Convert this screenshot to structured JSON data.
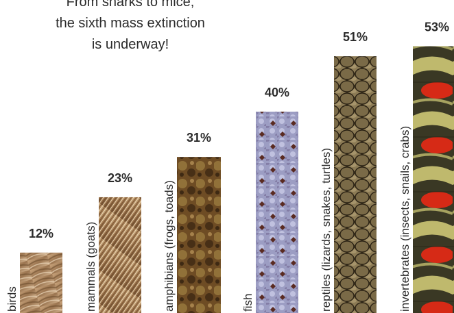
{
  "title_lines": [
    "From sharks to mice,",
    "the sixth mass extinction",
    "is underway!"
  ],
  "chart_data": {
    "type": "bar",
    "title": "From sharks to mice, the sixth mass extinction is underway!",
    "categories": [
      "birds",
      "mammals (goats)",
      "amphibians (frogs, toads)",
      "fish",
      "reptiles (lizards, snakes, turtles)",
      "invertebrates (insects, snails, crabs)"
    ],
    "values": [
      12,
      23,
      31,
      40,
      51,
      53
    ],
    "value_labels": [
      "12%",
      "23%",
      "31%",
      "40%",
      "51%",
      "53%"
    ],
    "units": "%",
    "ylim": [
      0,
      60
    ],
    "textures": [
      "feathers",
      "fur",
      "frog-skin",
      "fish-scales",
      "snake-scales",
      "butterfly-wing"
    ],
    "colors": {
      "birds": "#a88560",
      "mammals": "#b79366",
      "amphibians": "#6b4a22",
      "fish": "#8c8db5",
      "reptiles": "#6f5f3e",
      "invertebrates": "#3c3a26",
      "accent_red": "#d62a16",
      "accent_yellow": "#d9d27a"
    }
  }
}
